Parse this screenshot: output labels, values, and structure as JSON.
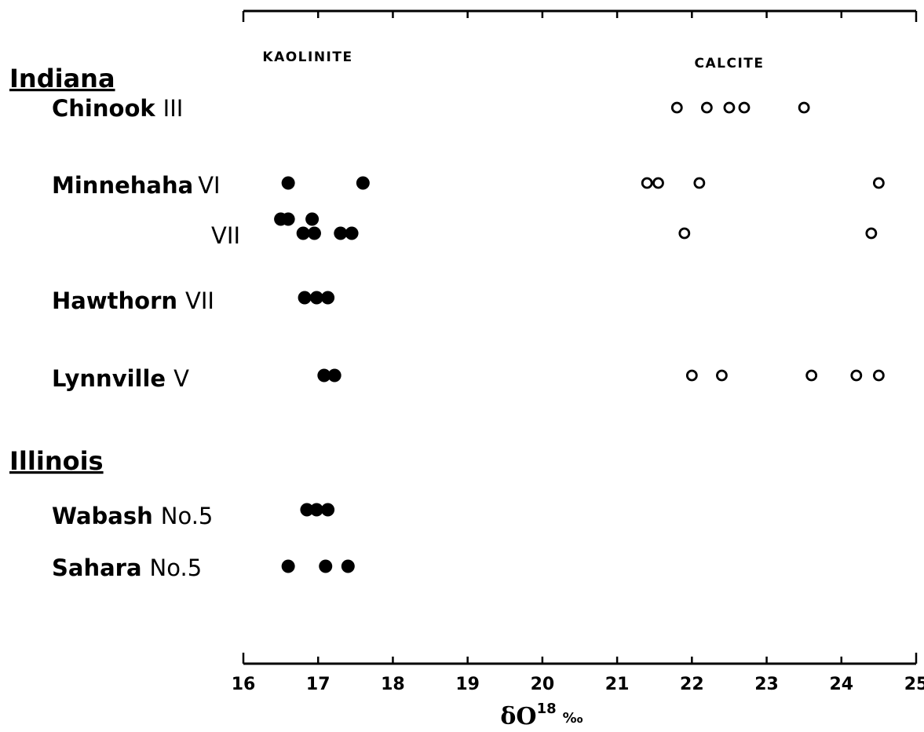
{
  "chart_data": {
    "type": "scatter",
    "xlabel": "δO",
    "xlabel_sup": "18",
    "xlabel_unit": "‰",
    "xlim": [
      16,
      25
    ],
    "ticks": [
      "16",
      "17",
      "18",
      "19",
      "20",
      "21",
      "22",
      "23",
      "24",
      "25"
    ],
    "grid": false,
    "column_labels": {
      "kaolinite": "KAOLINITE",
      "calcite": "CALCITE"
    },
    "groups": [
      {
        "label": "Indiana",
        "key": "indiana"
      },
      {
        "label": "Illinois",
        "key": "illinois"
      }
    ],
    "rows": [
      {
        "key": "chinook",
        "group": "indiana",
        "name": "Chinook",
        "code": "III",
        "kaolinite": [],
        "calcite": [
          21.8,
          22.2,
          22.5,
          22.7,
          23.5
        ]
      },
      {
        "key": "minnehaha6",
        "group": "indiana",
        "name": "Minnehaha",
        "code": "VI",
        "kaolinite": [
          16.6,
          17.6
        ],
        "calcite": [
          21.4,
          21.55,
          22.1,
          24.5
        ]
      },
      {
        "key": "minnehaha7",
        "group": "indiana",
        "name": "",
        "code": "VII",
        "kaolinite": [
          16.5,
          16.6,
          16.92,
          16.8,
          16.95,
          17.3,
          17.45
        ],
        "calcite": [
          21.9,
          24.4
        ]
      },
      {
        "key": "hawthorn",
        "group": "indiana",
        "name": "Hawthorn",
        "code": "VII",
        "kaolinite": [
          16.82,
          16.98,
          17.13
        ],
        "calcite": []
      },
      {
        "key": "lynnville",
        "group": "indiana",
        "name": "Lynnville",
        "code": "V",
        "kaolinite": [
          17.08,
          17.22
        ],
        "calcite": [
          22.0,
          22.4,
          23.6,
          24.2,
          24.5
        ]
      },
      {
        "key": "wabash",
        "group": "illinois",
        "name": "Wabash",
        "code": "No.5",
        "kaolinite": [
          16.85,
          16.98,
          17.13
        ],
        "calcite": []
      },
      {
        "key": "sahara",
        "group": "illinois",
        "name": "Sahara",
        "code": "No.5",
        "kaolinite": [
          16.6,
          17.1,
          17.4
        ],
        "calcite": []
      }
    ],
    "series": [
      {
        "key": "kaolinite",
        "marker": "filled-circle"
      },
      {
        "key": "calcite",
        "marker": "open-circle"
      }
    ],
    "colors": {
      "ink": "#000000",
      "background": "#ffffff"
    }
  }
}
